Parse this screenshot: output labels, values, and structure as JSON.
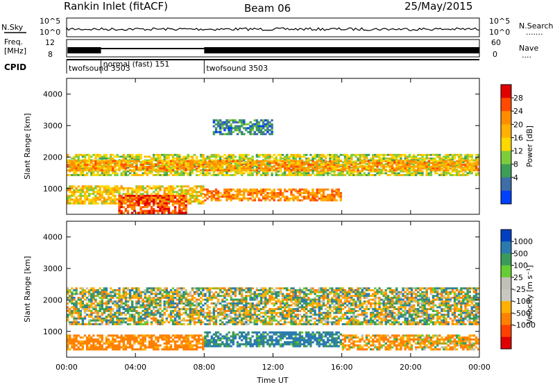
{
  "header": {
    "station": "Rankin Inlet (fitACF)",
    "beam": "Beam 06",
    "date": "25/May/2015"
  },
  "top_panels": {
    "nsky_label": "N.Sky",
    "nsearch_label": "N.Search",
    "nsearch_dots": ".......",
    "freq_label_1": "Freq.",
    "freq_label_2": "[MHz]",
    "nave_label": "Nave",
    "nave_dots": "....",
    "cpid_label": "CPID",
    "ticks_noise_left": [
      "10^5",
      "10^0"
    ],
    "ticks_noise_right": [
      "10^5",
      "10^0"
    ],
    "ticks_freq_left": [
      "12",
      "8"
    ],
    "ticks_freq_right": [
      "60",
      "0"
    ],
    "cpid_segments": [
      {
        "label": "twofsound 3503",
        "start_hour": 0.0,
        "end_hour": 2.0
      },
      {
        "label": "normal (fast) 151",
        "start_hour": 2.0,
        "end_hour": 8.0
      },
      {
        "label": "twofsound 3503",
        "start_hour": 8.0,
        "end_hour": 24.0
      }
    ]
  },
  "axes": {
    "x_label": "Time UT",
    "x_ticks": [
      "00:00",
      "04:00",
      "08:00",
      "12:00",
      "16:00",
      "20:00",
      "00:00"
    ],
    "y_label": "Slant Range [km]",
    "y_ticks": [
      "4000",
      "3000",
      "2000",
      "1000"
    ]
  },
  "colorbars": {
    "power": {
      "title": "Power [dB]",
      "ticks": [
        "28",
        "24",
        "20",
        "16",
        "12",
        "8",
        "4"
      ],
      "colors": [
        "#e00000",
        "#ff4a00",
        "#ff8c00",
        "#ffb000",
        "#ffd800",
        "#7dcc3a",
        "#3d9e58",
        "#3d6ea8",
        "#0040ff"
      ]
    },
    "velocity": {
      "title": "Velocity [m s⁻¹]",
      "ticks": [
        "1000",
        "500",
        "100",
        "25",
        "-25",
        "-100",
        "-500",
        "-1000"
      ],
      "colors": [
        "#0040c0",
        "#2a7ab0",
        "#3a9a5a",
        "#66cc33",
        "#c0c0b8",
        "#c8c8c0",
        "#ffb000",
        "#ff8000",
        "#ff4000",
        "#e00000"
      ]
    }
  },
  "chart_data": {
    "type": "heatmap",
    "title": "Rankin Inlet (fitACF)",
    "x_range_hours": [
      0,
      24
    ],
    "y_range_km": [
      180,
      4500
    ],
    "xlabel": "Time UT",
    "ylabel": "Slant Range [km]",
    "power_bands": [
      {
        "t0": 0.0,
        "t1": 24.0,
        "r_low": 1400,
        "r_high": 2100,
        "power_db": 14
      },
      {
        "t0": 0.0,
        "t1": 24.0,
        "r_low": 1550,
        "r_high": 1900,
        "power_db": 22
      },
      {
        "t0": 0.0,
        "t1": 8.0,
        "r_low": 500,
        "r_high": 1100,
        "power_db": 18
      },
      {
        "t0": 3.0,
        "t1": 7.0,
        "r_low": 200,
        "r_high": 800,
        "power_db": 28
      },
      {
        "t0": 8.0,
        "t1": 16.0,
        "r_low": 600,
        "r_high": 1000,
        "power_db": 24
      },
      {
        "t0": 8.5,
        "t1": 12.0,
        "r_low": 2700,
        "r_high": 3200,
        "power_db": 6
      }
    ],
    "velocity_bands": [
      {
        "t0": 0.0,
        "t1": 24.0,
        "r_low": 1200,
        "r_high": 2400,
        "velocity": 0
      },
      {
        "t0": 0.0,
        "t1": 8.0,
        "r_low": 400,
        "r_high": 900,
        "velocity": -200
      },
      {
        "t0": 8.0,
        "t1": 16.0,
        "r_low": 500,
        "r_high": 1000,
        "velocity": 150
      },
      {
        "t0": 16.0,
        "t1": 24.0,
        "r_low": 400,
        "r_high": 900,
        "velocity": -100
      }
    ]
  }
}
